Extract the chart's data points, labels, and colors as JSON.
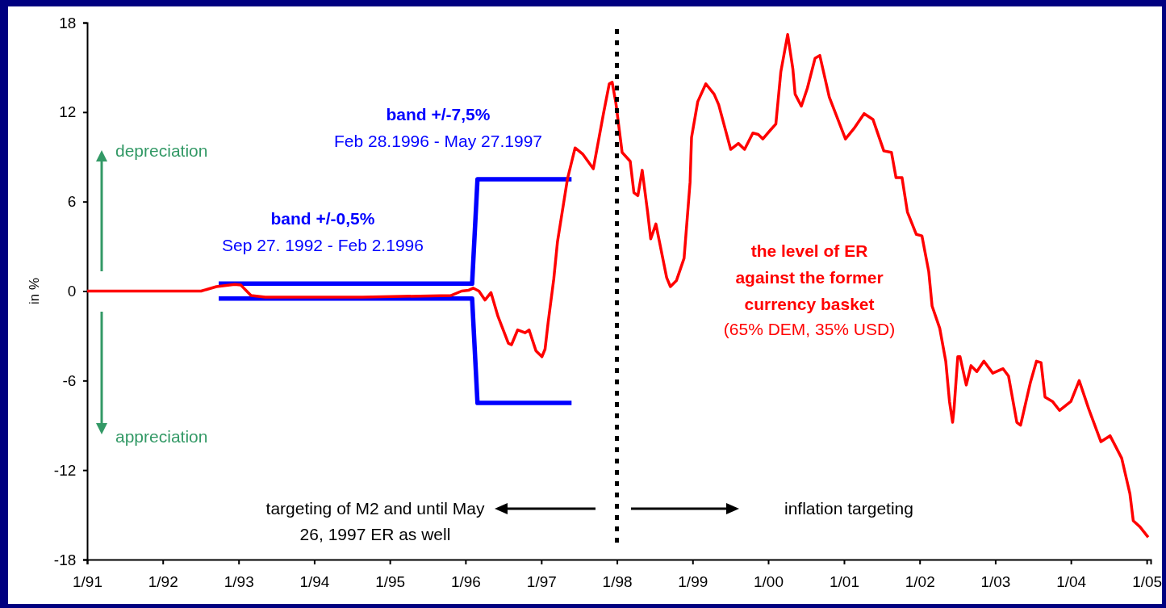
{
  "chart_data": {
    "type": "line",
    "ylabel": "in %",
    "xlim": [
      "1991-01-01",
      "2005-01-20"
    ],
    "ylim": [
      -18,
      18
    ],
    "xticks": [
      {
        "value": "1991-01",
        "label": "1/91"
      },
      {
        "value": "1992-01",
        "label": "1/92"
      },
      {
        "value": "1993-01",
        "label": "1/93"
      },
      {
        "value": "1994-01",
        "label": "1/94"
      },
      {
        "value": "1995-01",
        "label": "1/95"
      },
      {
        "value": "1996-01",
        "label": "1/96"
      },
      {
        "value": "1997-01",
        "label": "1/97"
      },
      {
        "value": "1998-01",
        "label": "1/98"
      },
      {
        "value": "1999-01",
        "label": "1/99"
      },
      {
        "value": "2000-01",
        "label": "1/00"
      },
      {
        "value": "2001-01",
        "label": "1/01"
      },
      {
        "value": "2002-01",
        "label": "1/02"
      },
      {
        "value": "2003-01",
        "label": "1/03"
      },
      {
        "value": "2004-01",
        "label": "1/04"
      },
      {
        "value": "2005-01",
        "label": "1/05"
      }
    ],
    "yticks": [
      -18,
      -12,
      -6,
      0,
      6,
      12,
      18
    ],
    "grid": false,
    "marker": "none",
    "series": [
      {
        "color": "#0000ff",
        "x": [
          "1992-09-27",
          "1996-02-02",
          "1996-02-28",
          "1997-05-27"
        ],
        "values": [
          0.5,
          0.5,
          7.5,
          7.5
        ]
      },
      {
        "color": "#0000ff",
        "x": [
          "1992-09-27",
          "1996-02-02",
          "1996-02-28",
          "1997-05-27"
        ],
        "values": [
          -0.5,
          -0.5,
          -7.5,
          -7.5
        ]
      },
      {
        "color": "#ff0000",
        "x": [
          "1991-01-01",
          "1992-07-04",
          "1992-09-16",
          "1992-12-13",
          "1993-01-12",
          "1993-03-02",
          "1993-05-10",
          "1994-08-21",
          "1995-10-22",
          "1995-12-13",
          "1996-01-15",
          "1996-02-07",
          "1996-03-06",
          "1996-04-04",
          "1996-05-03",
          "1996-06-06",
          "1996-07-26",
          "1996-08-10",
          "1996-09-09",
          "1996-10-15",
          "1996-11-03",
          "1996-12-06",
          "1997-01-04",
          "1997-01-19",
          "1997-02-03",
          "1997-03-02",
          "1997-03-20",
          "1997-05-07",
          "1997-06-13",
          "1997-07-19",
          "1997-09-09",
          "1997-10-28",
          "1997-11-25",
          "1997-12-09",
          "1997-12-27",
          "1998-01-26",
          "1998-03-06",
          "1998-03-24",
          "1998-04-12",
          "1998-05-03",
          "1998-05-29",
          "1998-06-13",
          "1998-07-08",
          "1998-08-29",
          "1998-09-16",
          "1998-10-15",
          "1998-11-21",
          "1998-12-20",
          "1998-12-27",
          "1999-01-26",
          "1999-03-06",
          "1999-04-15",
          "1999-05-07",
          "1999-07-04",
          "1999-08-10",
          "1999-09-09",
          "1999-10-19",
          "1999-11-14",
          "1999-12-06",
          "2000-01-12",
          "2000-02-07",
          "2000-03-02",
          "2000-04-04",
          "2000-04-29",
          "2000-05-10",
          "2000-06-09",
          "2000-07-08",
          "2000-08-14",
          "2000-09-06",
          "2000-10-22",
          "2001-01-08",
          "2001-02-18",
          "2001-04-08",
          "2001-05-21",
          "2001-07-12",
          "2001-08-18",
          "2001-09-09",
          "2001-10-08",
          "2001-11-03",
          "2001-12-16",
          "2002-01-12",
          "2002-02-14",
          "2002-03-02",
          "2002-04-08",
          "2002-05-07",
          "2002-05-25",
          "2002-06-09",
          "2002-06-16",
          "2002-07-04",
          "2002-07-15",
          "2002-08-14",
          "2002-09-06",
          "2002-10-04",
          "2002-11-07",
          "2002-12-20",
          "2003-02-07",
          "2003-03-06",
          "2003-04-15",
          "2003-05-03",
          "2003-06-20",
          "2003-07-19",
          "2003-08-10",
          "2003-08-29",
          "2003-10-04",
          "2003-11-07",
          "2004-01-01",
          "2004-02-10",
          "2004-03-27",
          "2004-05-25",
          "2004-07-08",
          "2004-09-02",
          "2004-10-12",
          "2004-10-28",
          "2004-11-29",
          "2005-01-08"
        ],
        "values": [
          0,
          0,
          0.3,
          0.45,
          0.4,
          -0.3,
          -0.4,
          -0.4,
          -0.3,
          0,
          0.05,
          0.2,
          0,
          -0.6,
          -0.1,
          -1.7,
          -3.5,
          -3.6,
          -2.6,
          -2.8,
          -2.6,
          -4.0,
          -4.4,
          -3.9,
          -2.1,
          0.8,
          3.3,
          7.5,
          9.6,
          9.2,
          8.2,
          11.9,
          13.9,
          14.0,
          12.6,
          9.3,
          8.7,
          6.6,
          6.4,
          8.1,
          5.3,
          3.5,
          4.5,
          0.9,
          0.3,
          0.7,
          2.2,
          7.3,
          10.3,
          12.7,
          13.9,
          13.2,
          12.5,
          9.5,
          9.9,
          9.5,
          10.6,
          10.5,
          10.2,
          10.8,
          11.2,
          14.7,
          17.2,
          14.9,
          13.2,
          12.4,
          13.6,
          15.6,
          15.8,
          13.0,
          10.2,
          10.9,
          11.9,
          11.5,
          9.4,
          9.3,
          7.6,
          7.6,
          5.3,
          3.8,
          3.7,
          1.3,
          -1.0,
          -2.5,
          -4.7,
          -7.4,
          -8.8,
          -7.9,
          -4.4,
          -4.4,
          -6.3,
          -5.0,
          -5.4,
          -4.7,
          -5.5,
          -5.2,
          -5.7,
          -8.8,
          -9.0,
          -6.1,
          -4.7,
          -4.8,
          -7.1,
          -7.4,
          -8.0,
          -7.4,
          -6.0,
          -7.9,
          -10.1,
          -9.7,
          -11.2,
          -13.6,
          -15.4,
          -15.8,
          -16.5
        ]
      }
    ],
    "ref_lines": [
      {
        "axis": "x",
        "value": "1998-01",
        "color": "#000000",
        "line_style": "dotted"
      }
    ],
    "annotations": [
      "depreciation",
      "appreciation",
      "band +/-0,5%",
      "Sep 27. 1992 - Feb 2.1996",
      "band +/-7,5%",
      "Feb 28.1996 - May 27.1997",
      "the level of ER against the former currency basket",
      "(65% DEM, 35% USD)",
      "targeting of M2 and until May 26, 1997 ER as well",
      "inflation targeting"
    ]
  }
}
